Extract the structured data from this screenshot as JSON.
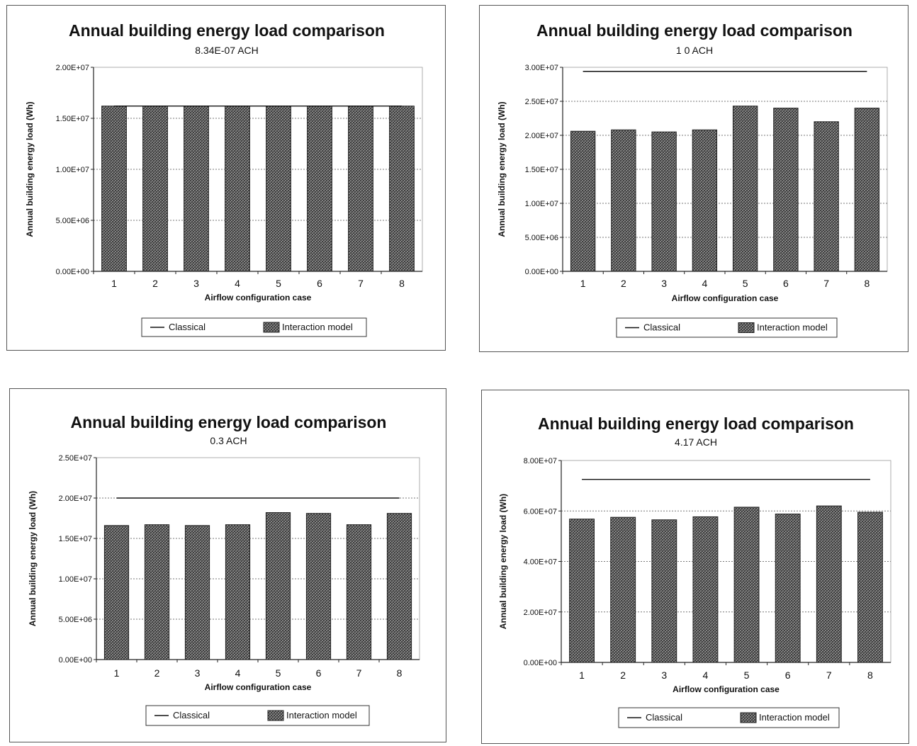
{
  "legend": {
    "classical": "Classical",
    "interaction": "Interaction model"
  },
  "colors": {
    "bar_fill": "#555555",
    "bar_edge": "#222222",
    "classical_line": "#111111",
    "grid": "#777777",
    "axis": "#222222"
  },
  "chart_data": [
    {
      "type": "bar",
      "title": "Annual building energy load comparison",
      "subtitle": "8.34E-07 ACH",
      "xlabel": "Airflow configuration case",
      "ylabel": "Annual building energy load (Wh)",
      "categories": [
        "1",
        "2",
        "3",
        "4",
        "5",
        "6",
        "7",
        "8"
      ],
      "ylim": [
        0,
        20000000
      ],
      "yticks": [
        0,
        5000000,
        10000000,
        15000000,
        20000000
      ],
      "ytick_labels": [
        "0.00E+00",
        "5.00E+06",
        "1.00E+07",
        "1.50E+07",
        "2.00E+07"
      ],
      "grid": true,
      "legend_position": "bottom",
      "series": [
        {
          "name": "Classical",
          "kind": "line",
          "values": [
            16200000,
            16200000,
            16200000,
            16200000,
            16200000,
            16200000,
            16200000,
            16200000
          ]
        },
        {
          "name": "Interaction model",
          "kind": "bar",
          "values": [
            16200000,
            16200000,
            16200000,
            16200000,
            16200000,
            16200000,
            16200000,
            16200000
          ]
        }
      ]
    },
    {
      "type": "bar",
      "title": "Annual building energy load comparison",
      "subtitle": "1 0 ACH",
      "xlabel": "Airflow configuration case",
      "ylabel": "Annual building energy load (Wh)",
      "categories": [
        "1",
        "2",
        "3",
        "4",
        "5",
        "6",
        "7",
        "8"
      ],
      "ylim": [
        0,
        30000000
      ],
      "yticks": [
        0,
        5000000,
        10000000,
        15000000,
        20000000,
        25000000,
        30000000
      ],
      "ytick_labels": [
        "0.00E+00",
        "5.00E+06",
        "1.00E+07",
        "1.50E+07",
        "2.00E+07",
        "2.50E+07",
        "3.00E+07"
      ],
      "grid": true,
      "legend_position": "bottom",
      "series": [
        {
          "name": "Classical",
          "kind": "line",
          "values": [
            29400000,
            29400000,
            29400000,
            29400000,
            29400000,
            29400000,
            29400000,
            29400000
          ]
        },
        {
          "name": "Interaction model",
          "kind": "bar",
          "values": [
            20600000,
            20800000,
            20500000,
            20800000,
            24300000,
            24000000,
            22000000,
            24000000
          ]
        }
      ]
    },
    {
      "type": "bar",
      "title": "Annual building energy load comparison",
      "subtitle": "0.3 ACH",
      "xlabel": "Airflow configuration case",
      "ylabel": "Annual building energy load (Wh)",
      "categories": [
        "1",
        "2",
        "3",
        "4",
        "5",
        "6",
        "7",
        "8"
      ],
      "ylim": [
        0,
        25000000
      ],
      "yticks": [
        0,
        5000000,
        10000000,
        15000000,
        20000000,
        25000000
      ],
      "ytick_labels": [
        "0.00E+00",
        "5.00E+06",
        "1.00E+07",
        "1.50E+07",
        "2.00E+07",
        "2.50E+07"
      ],
      "grid": true,
      "legend_position": "bottom",
      "series": [
        {
          "name": "Classical",
          "kind": "line",
          "values": [
            20000000,
            20000000,
            20000000,
            20000000,
            20000000,
            20000000,
            20000000,
            20000000
          ]
        },
        {
          "name": "Interaction model",
          "kind": "bar",
          "values": [
            16600000,
            16700000,
            16600000,
            16700000,
            18200000,
            18100000,
            16700000,
            18100000
          ]
        }
      ]
    },
    {
      "type": "bar",
      "title": "Annual building energy load comparison",
      "subtitle": "4.17 ACH",
      "xlabel": "Airflow configuration case",
      "ylabel": "Annual building energy load (Wh)",
      "categories": [
        "1",
        "2",
        "3",
        "4",
        "5",
        "6",
        "7",
        "8"
      ],
      "ylim": [
        0,
        80000000
      ],
      "yticks": [
        0,
        20000000,
        40000000,
        60000000,
        80000000
      ],
      "ytick_labels": [
        "0.00E+00",
        "2.00E+07",
        "4.00E+07",
        "6.00E+07",
        "8.00E+07"
      ],
      "grid": true,
      "legend_position": "bottom",
      "series": [
        {
          "name": "Classical",
          "kind": "line",
          "values": [
            72500000,
            72500000,
            72500000,
            72500000,
            72500000,
            72500000,
            72500000,
            72500000
          ]
        },
        {
          "name": "Interaction model",
          "kind": "bar",
          "values": [
            56800000,
            57500000,
            56500000,
            57700000,
            61500000,
            58800000,
            62000000,
            59500000
          ]
        }
      ]
    }
  ]
}
